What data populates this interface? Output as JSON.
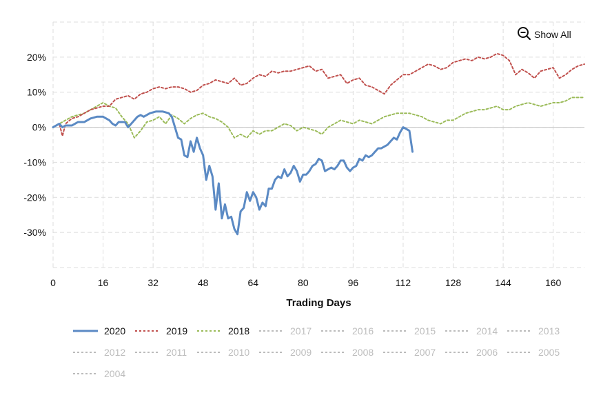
{
  "chart_data": {
    "type": "line",
    "xlabel": "Trading Days",
    "ylabel": "",
    "xlim": [
      0,
      170
    ],
    "ylim": [
      -40,
      30
    ],
    "x_ticks": [
      0,
      16,
      32,
      48,
      64,
      80,
      96,
      112,
      128,
      144,
      160
    ],
    "y_ticks": [
      -30,
      -20,
      -10,
      0,
      10,
      20
    ],
    "y_tick_format": "percent",
    "grid": true,
    "legend_position": "bottom",
    "show_all_label": "Show All",
    "series": [
      {
        "name": "2020",
        "color": "#5b8ac4",
        "style": "solid",
        "active": true,
        "points": [
          [
            0,
            0
          ],
          [
            2,
            1
          ],
          [
            3,
            0
          ],
          [
            4,
            0.5
          ],
          [
            6,
            0.5
          ],
          [
            8,
            1.5
          ],
          [
            10,
            1.5
          ],
          [
            12,
            2.5
          ],
          [
            14,
            3
          ],
          [
            16,
            3
          ],
          [
            18,
            2
          ],
          [
            19,
            1
          ],
          [
            20,
            0.5
          ],
          [
            21,
            1.5
          ],
          [
            23,
            1.5
          ],
          [
            24,
            0
          ],
          [
            25,
            1
          ],
          [
            27,
            3
          ],
          [
            28,
            3.5
          ],
          [
            29,
            3
          ],
          [
            31,
            4
          ],
          [
            33,
            4.5
          ],
          [
            35,
            4.5
          ],
          [
            37,
            4
          ],
          [
            38,
            3
          ],
          [
            39,
            0
          ],
          [
            40,
            -3
          ],
          [
            41,
            -3.5
          ],
          [
            42,
            -8
          ],
          [
            43,
            -8.5
          ],
          [
            44,
            -4
          ],
          [
            45,
            -7
          ],
          [
            46,
            -3
          ],
          [
            47,
            -6
          ],
          [
            48,
            -8
          ],
          [
            49,
            -15
          ],
          [
            50,
            -11
          ],
          [
            51,
            -14
          ],
          [
            52,
            -23.5
          ],
          [
            53,
            -16
          ],
          [
            54,
            -26
          ],
          [
            55,
            -22
          ],
          [
            56,
            -26
          ],
          [
            57,
            -25.5
          ],
          [
            58,
            -29
          ],
          [
            59,
            -30.5
          ],
          [
            60,
            -24
          ],
          [
            61,
            -23
          ],
          [
            62,
            -18.5
          ],
          [
            63,
            -21
          ],
          [
            64,
            -18.5
          ],
          [
            65,
            -20
          ],
          [
            66,
            -23.5
          ],
          [
            67,
            -21.5
          ],
          [
            68,
            -22.5
          ],
          [
            69,
            -17.5
          ],
          [
            70,
            -17.5
          ],
          [
            71,
            -15
          ],
          [
            72,
            -14
          ],
          [
            73,
            -14.5
          ],
          [
            74,
            -12
          ],
          [
            75,
            -14
          ],
          [
            76,
            -13
          ],
          [
            77,
            -11
          ],
          [
            78,
            -12.5
          ],
          [
            79,
            -15.5
          ],
          [
            80,
            -13.5
          ],
          [
            81,
            -13.5
          ],
          [
            82,
            -12.5
          ],
          [
            83,
            -11
          ],
          [
            84,
            -10.5
          ],
          [
            85,
            -9
          ],
          [
            86,
            -9.5
          ],
          [
            87,
            -12.5
          ],
          [
            88,
            -12
          ],
          [
            89,
            -11.5
          ],
          [
            90,
            -12
          ],
          [
            91,
            -11
          ],
          [
            92,
            -9.5
          ],
          [
            93,
            -9.5
          ],
          [
            94,
            -11.5
          ],
          [
            95,
            -12.5
          ],
          [
            96,
            -11.5
          ],
          [
            97,
            -11
          ],
          [
            98,
            -9
          ],
          [
            99,
            -9.5
          ],
          [
            100,
            -8
          ],
          [
            101,
            -8.5
          ],
          [
            102,
            -8
          ],
          [
            103,
            -7
          ],
          [
            104,
            -6
          ],
          [
            105,
            -6
          ],
          [
            106,
            -5.5
          ],
          [
            107,
            -5
          ],
          [
            108,
            -4
          ],
          [
            109,
            -3
          ],
          [
            110,
            -3.5
          ],
          [
            111,
            -1.5
          ],
          [
            112,
            0
          ],
          [
            113,
            -0.5
          ],
          [
            114,
            -1
          ],
          [
            115,
            -7
          ]
        ]
      },
      {
        "name": "2019",
        "color": "#c0504d",
        "style": "dashed",
        "active": true,
        "points": [
          [
            0,
            0
          ],
          [
            2,
            1
          ],
          [
            3,
            -2.5
          ],
          [
            4,
            1
          ],
          [
            6,
            2.5
          ],
          [
            8,
            3
          ],
          [
            10,
            4
          ],
          [
            12,
            5
          ],
          [
            14,
            5.5
          ],
          [
            16,
            6
          ],
          [
            18,
            6
          ],
          [
            20,
            8
          ],
          [
            22,
            8.5
          ],
          [
            24,
            9
          ],
          [
            26,
            8
          ],
          [
            28,
            9.5
          ],
          [
            30,
            10
          ],
          [
            32,
            11
          ],
          [
            34,
            11.5
          ],
          [
            36,
            11
          ],
          [
            38,
            11.5
          ],
          [
            40,
            11.5
          ],
          [
            42,
            11
          ],
          [
            44,
            10
          ],
          [
            46,
            10.5
          ],
          [
            48,
            12
          ],
          [
            50,
            12.5
          ],
          [
            52,
            13.5
          ],
          [
            54,
            13
          ],
          [
            56,
            12.5
          ],
          [
            58,
            14
          ],
          [
            60,
            12
          ],
          [
            62,
            12.5
          ],
          [
            64,
            14
          ],
          [
            66,
            15
          ],
          [
            68,
            14.5
          ],
          [
            70,
            16
          ],
          [
            72,
            15.5
          ],
          [
            74,
            16
          ],
          [
            76,
            16
          ],
          [
            78,
            16.5
          ],
          [
            80,
            17
          ],
          [
            82,
            17.5
          ],
          [
            84,
            16
          ],
          [
            86,
            16.5
          ],
          [
            88,
            14
          ],
          [
            90,
            14.5
          ],
          [
            92,
            15
          ],
          [
            94,
            12.5
          ],
          [
            96,
            13.5
          ],
          [
            98,
            14
          ],
          [
            100,
            12
          ],
          [
            102,
            11.5
          ],
          [
            104,
            10.5
          ],
          [
            106,
            9.5
          ],
          [
            108,
            12
          ],
          [
            110,
            13.5
          ],
          [
            112,
            15
          ],
          [
            114,
            15
          ],
          [
            116,
            16
          ],
          [
            118,
            17
          ],
          [
            120,
            18
          ],
          [
            122,
            17.5
          ],
          [
            124,
            16.5
          ],
          [
            126,
            17
          ],
          [
            128,
            18.5
          ],
          [
            130,
            19
          ],
          [
            132,
            19.5
          ],
          [
            134,
            19
          ],
          [
            136,
            20
          ],
          [
            138,
            19.5
          ],
          [
            140,
            20
          ],
          [
            142,
            21
          ],
          [
            144,
            20.5
          ],
          [
            146,
            19
          ],
          [
            148,
            15
          ],
          [
            150,
            16.5
          ],
          [
            152,
            15.5
          ],
          [
            154,
            14
          ],
          [
            156,
            16
          ],
          [
            158,
            16.5
          ],
          [
            160,
            17
          ],
          [
            162,
            14
          ],
          [
            164,
            15
          ],
          [
            166,
            16.5
          ],
          [
            168,
            17.5
          ],
          [
            170,
            18
          ]
        ]
      },
      {
        "name": "2018",
        "color": "#9bbb59",
        "style": "dashed",
        "active": true,
        "points": [
          [
            0,
            0
          ],
          [
            2,
            1
          ],
          [
            4,
            2
          ],
          [
            6,
            3
          ],
          [
            8,
            3.5
          ],
          [
            10,
            4
          ],
          [
            12,
            5
          ],
          [
            14,
            6
          ],
          [
            16,
            7
          ],
          [
            18,
            6
          ],
          [
            20,
            5.5
          ],
          [
            22,
            3
          ],
          [
            24,
            1
          ],
          [
            26,
            -3
          ],
          [
            28,
            -1
          ],
          [
            30,
            1.5
          ],
          [
            32,
            2
          ],
          [
            34,
            3
          ],
          [
            36,
            1
          ],
          [
            38,
            3.5
          ],
          [
            40,
            2.5
          ],
          [
            42,
            1
          ],
          [
            44,
            2.5
          ],
          [
            46,
            3.5
          ],
          [
            48,
            4
          ],
          [
            50,
            3
          ],
          [
            52,
            2.5
          ],
          [
            54,
            1.5
          ],
          [
            56,
            0
          ],
          [
            58,
            -3
          ],
          [
            60,
            -2
          ],
          [
            62,
            -3
          ],
          [
            64,
            -1
          ],
          [
            66,
            -2
          ],
          [
            68,
            -1
          ],
          [
            70,
            -1
          ],
          [
            72,
            0
          ],
          [
            74,
            1
          ],
          [
            76,
            0.5
          ],
          [
            78,
            -1
          ],
          [
            80,
            0
          ],
          [
            82,
            -0.5
          ],
          [
            84,
            -1
          ],
          [
            86,
            -2
          ],
          [
            88,
            0
          ],
          [
            90,
            1
          ],
          [
            92,
            2
          ],
          [
            94,
            1.5
          ],
          [
            96,
            1
          ],
          [
            98,
            2
          ],
          [
            100,
            1.5
          ],
          [
            102,
            1
          ],
          [
            104,
            2
          ],
          [
            106,
            3
          ],
          [
            108,
            3.5
          ],
          [
            110,
            4
          ],
          [
            112,
            4
          ],
          [
            114,
            4
          ],
          [
            116,
            3.5
          ],
          [
            118,
            3
          ],
          [
            120,
            2
          ],
          [
            122,
            1.5
          ],
          [
            124,
            1
          ],
          [
            126,
            2
          ],
          [
            128,
            2
          ],
          [
            130,
            3
          ],
          [
            132,
            4
          ],
          [
            134,
            4.5
          ],
          [
            136,
            5
          ],
          [
            138,
            5
          ],
          [
            140,
            5.5
          ],
          [
            142,
            6
          ],
          [
            144,
            5
          ],
          [
            146,
            5
          ],
          [
            148,
            6
          ],
          [
            150,
            6.5
          ],
          [
            152,
            7
          ],
          [
            154,
            6.5
          ],
          [
            156,
            6
          ],
          [
            158,
            6.5
          ],
          [
            160,
            7
          ],
          [
            162,
            7
          ],
          [
            164,
            7.5
          ],
          [
            166,
            8.5
          ],
          [
            168,
            8.5
          ],
          [
            170,
            8.5
          ]
        ]
      },
      {
        "name": "2017",
        "color": "#bbbbbb",
        "style": "dashed",
        "active": false
      },
      {
        "name": "2016",
        "color": "#bbbbbb",
        "style": "dashed",
        "active": false
      },
      {
        "name": "2015",
        "color": "#bbbbbb",
        "style": "dashed",
        "active": false
      },
      {
        "name": "2014",
        "color": "#bbbbbb",
        "style": "dashed",
        "active": false
      },
      {
        "name": "2013",
        "color": "#bbbbbb",
        "style": "dashed",
        "active": false
      },
      {
        "name": "2012",
        "color": "#bbbbbb",
        "style": "dashed",
        "active": false
      },
      {
        "name": "2011",
        "color": "#bbbbbb",
        "style": "dashed",
        "active": false
      },
      {
        "name": "2010",
        "color": "#bbbbbb",
        "style": "dashed",
        "active": false
      },
      {
        "name": "2009",
        "color": "#bbbbbb",
        "style": "dashed",
        "active": false
      },
      {
        "name": "2008",
        "color": "#bbbbbb",
        "style": "dashed",
        "active": false
      },
      {
        "name": "2007",
        "color": "#bbbbbb",
        "style": "dashed",
        "active": false
      },
      {
        "name": "2006",
        "color": "#bbbbbb",
        "style": "dashed",
        "active": false
      },
      {
        "name": "2005",
        "color": "#bbbbbb",
        "style": "dashed",
        "active": false
      },
      {
        "name": "2004",
        "color": "#bbbbbb",
        "style": "dashed",
        "active": false
      }
    ]
  }
}
